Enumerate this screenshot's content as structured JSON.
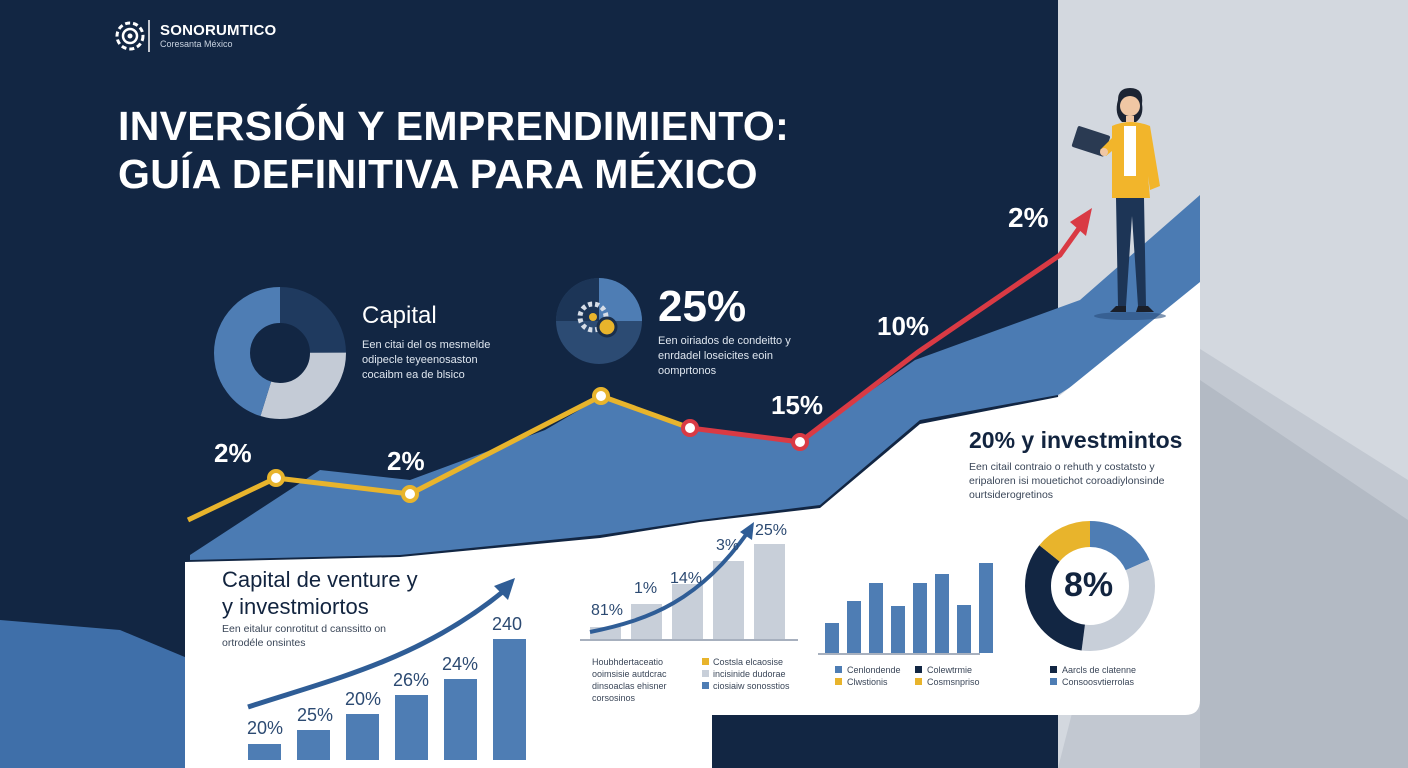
{
  "brand": {
    "name": "SONORUMTICO",
    "subtitle": "Coresanta México"
  },
  "title": {
    "line1": "INVERSIÓN Y EMPRENDIMIENTO:",
    "line2": "GUÍA DEFINITIVA PARA MÉXICO"
  },
  "capital_card": {
    "heading": "Capital",
    "body": "Een citai del os mesmelde odipecle teyeenosaston cocaibm ea de blsico"
  },
  "stat_card": {
    "value": "25%",
    "body": "Een oiriados de condeitto y enrdadel loseicites eoin oomprtonos"
  },
  "top_line_labels": [
    "2%",
    "2%",
    "15%",
    "10%",
    "2%"
  ],
  "investment_card": {
    "heading": "20% y investmintos",
    "body": "Een citail contraio o rehuth y costatsto y eripaloren isi mouetichot coroadiylonsinde ourtsiderogretinos"
  },
  "venture_card": {
    "heading_line1": "Capital de venture y",
    "heading_line2": "y investmiortos",
    "body": "Een eitalur conrotitut d canssitto on ortrodéle onsintes"
  },
  "venture_bar_chart": {
    "values": [
      20,
      25,
      20,
      26,
      24,
      240
    ],
    "labels": [
      "20%",
      "25%",
      "20%",
      "26%",
      "24%",
      "240"
    ]
  },
  "middle_bar_chart": {
    "values": [
      81,
      1,
      14,
      3,
      25
    ],
    "labels": [
      "81%",
      "1%",
      "14%",
      "3%",
      "25%"
    ]
  },
  "middle_legend": {
    "col1": [
      "Houbhdertaceatio",
      "ooimsisie autdcrac",
      "dinsoaclas ehisner",
      "corsosinos"
    ],
    "col2": [
      "Costsla elcaosise",
      "incisinide dudorae",
      "ciosiaiw sonosstios"
    ]
  },
  "right_bar_chart": {
    "values": [
      30,
      52,
      70,
      47,
      70,
      79,
      48,
      90
    ]
  },
  "right_legend": [
    "Cenlondende",
    "Colewtrmie",
    "Clwstionis",
    "Cosmsnpriso"
  ],
  "donut_right": {
    "value": "8%",
    "legend": [
      "Aarcls de clatenne",
      "Consoosvtierrolas"
    ]
  },
  "colors": {
    "navy": "#122643",
    "blue": "#4e7db4",
    "gold": "#e8b42c",
    "red": "#d93a44",
    "gray": "#c8cfd9"
  }
}
